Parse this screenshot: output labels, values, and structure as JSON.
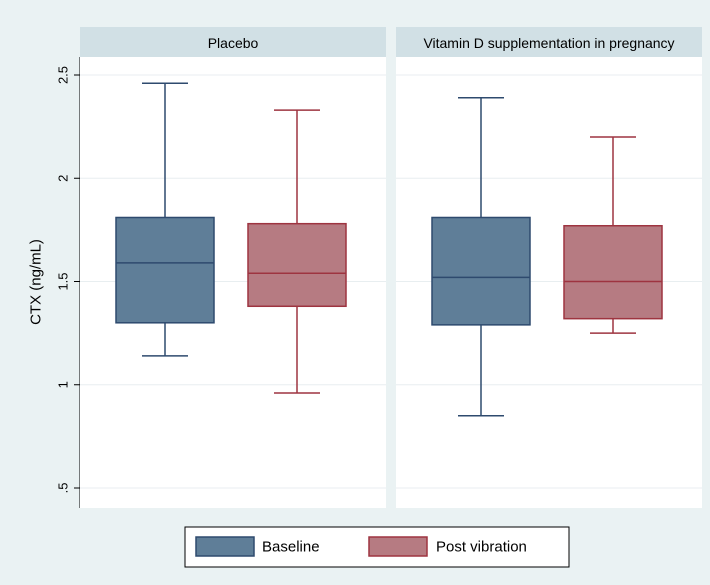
{
  "chart_data": {
    "type": "box",
    "ylabel": "CTX (ng/mL)",
    "ylim": [
      0.5,
      2.5
    ],
    "yticks": [
      {
        "value": 0.5,
        "label": ".5"
      },
      {
        "value": 1,
        "label": "1"
      },
      {
        "value": 1.5,
        "label": "1.5"
      },
      {
        "value": 2,
        "label": "2"
      },
      {
        "value": 2.5,
        "label": "2.5"
      }
    ],
    "grid": true,
    "legend_position": "bottom",
    "series": [
      {
        "name": "Baseline",
        "fill": "#5f7e98",
        "stroke": "#2e4a6e"
      },
      {
        "name": "Post vibration",
        "fill": "#b67b82",
        "stroke": "#9e3440"
      }
    ],
    "panels": [
      {
        "title": "Placebo",
        "boxes": [
          {
            "series": "Baseline",
            "min": 1.14,
            "q1": 1.3,
            "median": 1.59,
            "q3": 1.81,
            "max": 2.46
          },
          {
            "series": "Post vibration",
            "min": 0.96,
            "q1": 1.38,
            "median": 1.54,
            "q3": 1.78,
            "max": 2.33
          }
        ]
      },
      {
        "title": "Vitamin D supplementation in pregnancy",
        "boxes": [
          {
            "series": "Baseline",
            "min": 0.85,
            "q1": 1.29,
            "median": 1.52,
            "q3": 1.81,
            "max": 2.39
          },
          {
            "series": "Post vibration",
            "min": 1.25,
            "q1": 1.32,
            "median": 1.5,
            "q3": 1.77,
            "max": 2.2
          }
        ]
      }
    ]
  }
}
